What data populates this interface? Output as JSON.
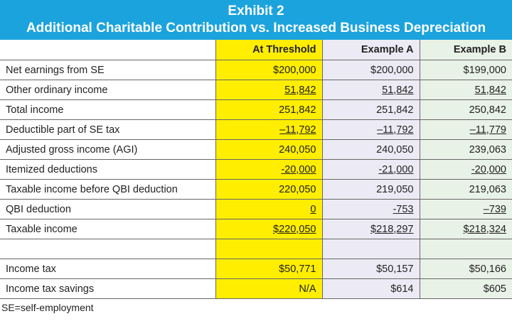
{
  "title": {
    "line1": "Exhibit 2",
    "line2": "Additional Charitable Contribution vs. Increased Business Depreciation"
  },
  "columns": [
    "",
    "At Threshold",
    "Example A",
    "Example B"
  ],
  "rows": [
    {
      "label": "Net earnings from SE",
      "values": [
        "$200,000",
        "$200,000",
        "$199,000"
      ],
      "underline": false
    },
    {
      "label": "Other ordinary income",
      "values": [
        "51,842",
        "51,842",
        "51,842"
      ],
      "underline": true
    },
    {
      "label": "Total income",
      "values": [
        "251,842",
        "251,842",
        "250,842"
      ],
      "underline": false
    },
    {
      "label": "Deductible part of SE tax",
      "values": [
        "–11,792",
        "–11,792",
        "–11,779"
      ],
      "underline": true
    },
    {
      "label": "Adjusted gross income (AGI)",
      "values": [
        "240,050",
        "240,050",
        "239,063"
      ],
      "underline": false
    },
    {
      "label": "Itemized deductions",
      "values": [
        "-20,000",
        "-21,000",
        "-20,000"
      ],
      "underline": true
    },
    {
      "label": "Taxable income before QBI deduction",
      "values": [
        "220,050",
        "219,050",
        "219,063"
      ],
      "underline": false
    },
    {
      "label": "QBI deduction",
      "values": [
        "0",
        "-753",
        "–739"
      ],
      "underline": true
    },
    {
      "label": "Taxable income",
      "values": [
        "$220,050",
        "$218,297",
        "$218,324"
      ],
      "underline": true
    },
    {
      "label": "",
      "values": [
        "",
        "",
        ""
      ],
      "underline": false
    },
    {
      "label": "Income tax",
      "values": [
        "$50,771",
        "$50,157",
        "$50,166"
      ],
      "underline": false
    },
    {
      "label": "Income tax savings",
      "values": [
        "N/A",
        "$614",
        "$605"
      ],
      "underline": false
    }
  ],
  "footnote": "SE=self-employment",
  "colors": {
    "title_bg": "#1ba3dd",
    "threshold": "#ffee00",
    "example_a": "#ecebf5",
    "example_b": "#e9f2e6"
  }
}
